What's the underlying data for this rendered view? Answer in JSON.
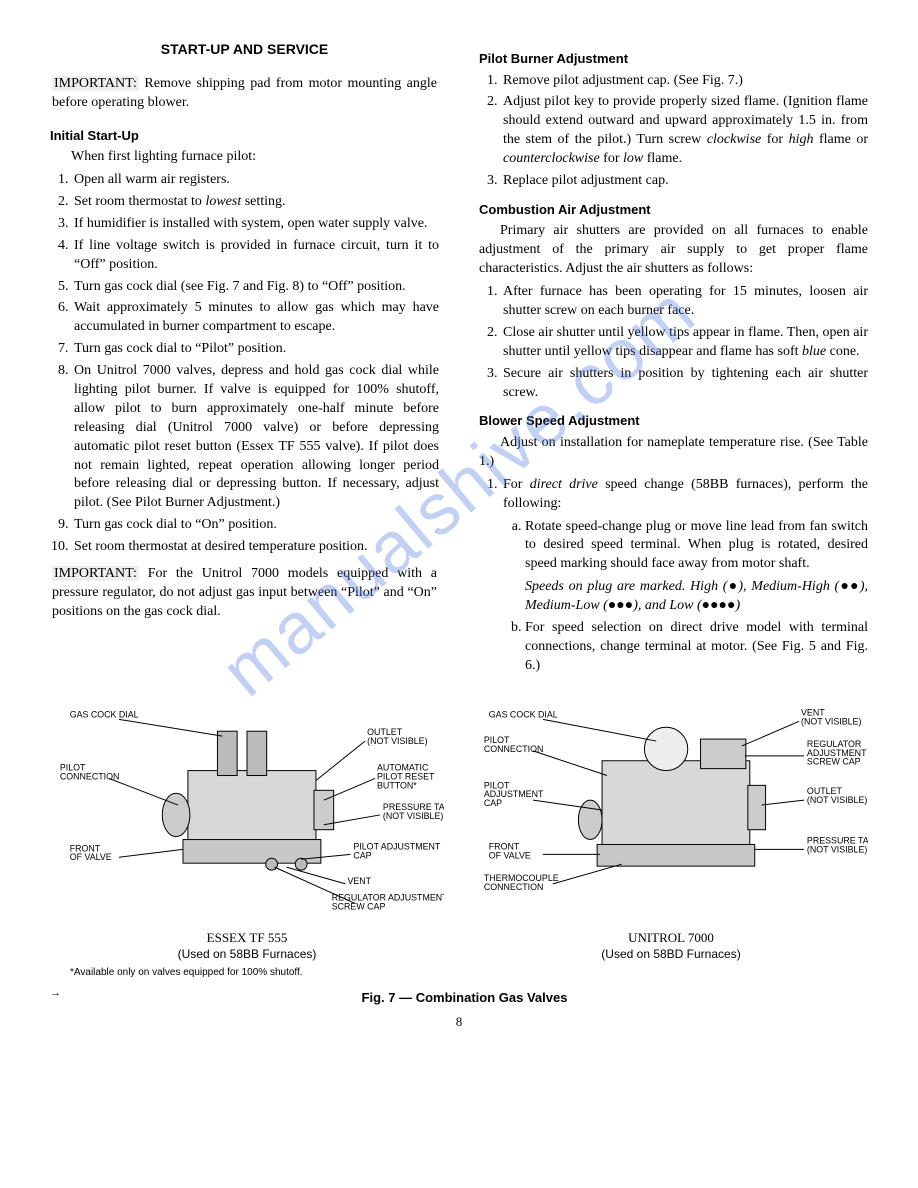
{
  "watermark": "manualshive.com",
  "left": {
    "heading": "START-UP AND SERVICE",
    "important1_lead": "IMPORTANT:",
    "important1": "Remove shipping pad from motor mounting angle before operating blower.",
    "sub1": "Initial Start-Up",
    "sub1_intro": "When first lighting furnace pilot:",
    "list1": [
      "Open all warm air registers.",
      "Set room thermostat to <span class=\"ital\">lowest</span> setting.",
      "If humidifier is installed with system, open water supply valve.",
      "If line voltage switch is provided in furnace circuit, turn it to “Off” position.",
      "Turn gas cock dial (see Fig. 7 and Fig. 8) to “Off” position.",
      "Wait approximately 5 minutes to allow gas which may have accumulated in burner compartment to escape.",
      "Turn gas cock dial to “Pilot” position.",
      "On Unitrol 7000 valves, depress and hold gas cock dial while lighting pilot burner. If valve is equipped for 100% shutoff, allow pilot to burn approximately one-half minute before releasing dial (Unitrol 7000 valve) or before depressing automatic pilot reset button (Essex TF 555 valve). If pilot does not remain lighted, repeat operation allowing longer period before releasing dial or depressing button. If necessary, adjust pilot. (See Pilot Burner Adjustment.)",
      "Turn gas cock dial to “On” position.",
      "Set room thermostat at desired temperature position."
    ],
    "important2_lead": "IMPORTANT:",
    "important2": "For the Unitrol 7000 models equipped with a pressure regulator, do not adjust gas input between “Pilot” and “On” positions on the gas cock dial."
  },
  "right": {
    "sub1": "Pilot Burner Adjustment",
    "list1": [
      "Remove pilot adjustment cap. (See Fig. 7.)",
      "Adjust pilot key to provide properly sized flame. (Ignition flame should extend outward and upward approximately 1.5 in. from the stem of the pilot.) Turn screw <span class=\"ital\">clockwise</span> for <span class=\"ital\">high</span> flame or <span class=\"ital\">counterclockwise</span> for <span class=\"ital\">low</span> flame.",
      "Replace pilot adjustment cap."
    ],
    "sub2": "Combustion Air Adjustment",
    "sub2_intro": "Primary air shutters are provided on all furnaces to enable adjustment of the primary air supply to get proper flame characteristics. Adjust the air shutters as follows:",
    "list2": [
      "After furnace has been operating for 15 minutes, loosen air shutter screw on each burner face.",
      "Close air shutter until yellow tips appear in flame. Then, open air shutter until yellow tips disappear and flame has soft <span class=\"ital\">blue</span> cone.",
      "Secure air shutters in position by tightening each air shutter screw."
    ],
    "sub3": "Blower Speed Adjustment",
    "sub3_intro": "Adjust on installation for nameplate temperature rise. (See Table 1.)",
    "list3_1": "For <span class=\"ital\">direct drive</span> speed change (58BB furnaces), perform the following:",
    "list3_a": "Rotate speed-change plug or move line lead from fan switch to desired speed terminal. When plug is rotated, desired speed marking should face away from motor shaft.",
    "list3_a_note": "<span class=\"ital\">Speeds on plug are marked. High (●), Medium-High (●●), Medium-Low (●●●), and Low (●●●●)</span>",
    "list3_b": "For speed selection on direct drive model with terminal connections, change terminal at motor. (See Fig. 5 and Fig. 6.)"
  },
  "figs": {
    "left": {
      "labels": {
        "gck": "GAS COCK DIAL",
        "pilot_conn": "PILOT\nCONNECTION",
        "outlet": "OUTLET\n(NOT VISIBLE)",
        "auto_reset": "AUTOMATIC\nPILOT RESET\nBUTTON*",
        "ptap": "PRESSURE TAP\n(NOT VISIBLE)",
        "front": "FRONT\nOF VALVE",
        "pilot_adj": "PILOT ADJUSTMENT\nCAP",
        "vent": "VENT",
        "reg_adj": "REGULATOR ADJUSTMENT\nSCREW CAP"
      },
      "name": "ESSEX TF 555",
      "sub": "(Used on 58BB Furnaces)"
    },
    "right": {
      "labels": {
        "gck": "GAS COCK DIAL",
        "pilot_conn": "PILOT\nCONNECTION",
        "vent": "VENT\n(NOT VISIBLE)",
        "reg_adj": "REGULATOR\nADJUSTMENT\nSCREW CAP",
        "pilot_adj": "PILOT\nADJUSTMENT\nCAP",
        "outlet": "OUTLET\n(NOT VISIBLE)",
        "front": "FRONT\nOF VALVE",
        "ptap": "PRESSURE TAP\n(NOT VISIBLE)",
        "thermo": "THERMOCOUPLE\nCONNECTION"
      },
      "name": "UNITROL 7000",
      "sub": "(Used on 58BD Furnaces)"
    },
    "footnote": "*Available only on valves equipped for 100% shutoff.",
    "title": "Fig. 7 — Combination Gas Valves"
  },
  "pagenum": "8",
  "arrow": "→"
}
